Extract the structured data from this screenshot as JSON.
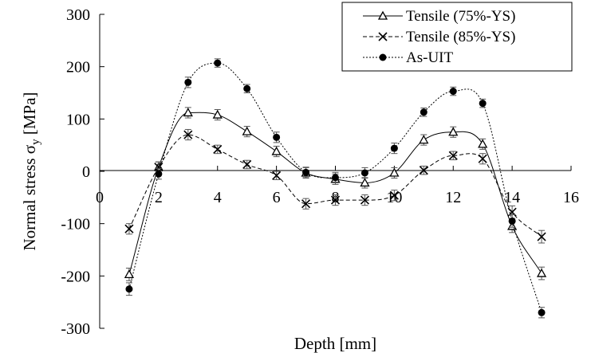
{
  "chart_data": {
    "type": "line",
    "xlabel": "Depth [mm]",
    "ylabel_main": "Normal  stress σ",
    "ylabel_sub": "y",
    "ylabel_unit": " [MPa]",
    "xlim": [
      0,
      16
    ],
    "ylim": [
      -300,
      300
    ],
    "x_ticks": [
      0,
      2,
      4,
      6,
      8,
      10,
      12,
      14,
      16
    ],
    "y_ticks": [
      -300,
      -200,
      -100,
      0,
      100,
      200,
      300
    ],
    "grid": false,
    "legend_position": "top-right",
    "series": [
      {
        "name": "Tensile (75%-YS)",
        "marker": "triangle",
        "line": "solid",
        "points": [
          {
            "x": 1,
            "y": -197,
            "err": 12
          },
          {
            "x": 2,
            "y": 8,
            "err": 10
          },
          {
            "x": 3,
            "y": 112,
            "err": 10
          },
          {
            "x": 4,
            "y": 108,
            "err": 10
          },
          {
            "x": 5,
            "y": 76,
            "err": 10
          },
          {
            "x": 6,
            "y": 38,
            "err": 10
          },
          {
            "x": 7,
            "y": -3,
            "err": 10
          },
          {
            "x": 8,
            "y": -15,
            "err": 10
          },
          {
            "x": 9,
            "y": -22,
            "err": 10
          },
          {
            "x": 10,
            "y": -3,
            "err": 10
          },
          {
            "x": 11,
            "y": 60,
            "err": 10
          },
          {
            "x": 12,
            "y": 75,
            "err": 10
          },
          {
            "x": 13,
            "y": 52,
            "err": 10
          },
          {
            "x": 14,
            "y": -105,
            "err": 12
          },
          {
            "x": 15,
            "y": -195,
            "err": 12
          }
        ]
      },
      {
        "name": "Tensile (85%-YS)",
        "marker": "x",
        "line": "dashed",
        "points": [
          {
            "x": 1,
            "y": -110,
            "err": 10
          },
          {
            "x": 2,
            "y": 8,
            "err": 10
          },
          {
            "x": 3,
            "y": 70,
            "err": 10
          },
          {
            "x": 4,
            "y": 42,
            "err": 8
          },
          {
            "x": 5,
            "y": 13,
            "err": 8
          },
          {
            "x": 6,
            "y": -8,
            "err": 8
          },
          {
            "x": 7,
            "y": -62,
            "err": 10
          },
          {
            "x": 8,
            "y": -55,
            "err": 10
          },
          {
            "x": 9,
            "y": -55,
            "err": 10
          },
          {
            "x": 10,
            "y": -46,
            "err": 10
          },
          {
            "x": 11,
            "y": 2,
            "err": 8
          },
          {
            "x": 12,
            "y": 30,
            "err": 8
          },
          {
            "x": 13,
            "y": 24,
            "err": 10
          },
          {
            "x": 14,
            "y": -78,
            "err": 12
          },
          {
            "x": 15,
            "y": -125,
            "err": 12
          }
        ]
      },
      {
        "name": "As-UIT",
        "marker": "dot",
        "line": "dotted",
        "points": [
          {
            "x": 1,
            "y": -225,
            "err": 12
          },
          {
            "x": 2,
            "y": -5,
            "err": 10
          },
          {
            "x": 3,
            "y": 170,
            "err": 10
          },
          {
            "x": 4,
            "y": 207,
            "err": 8
          },
          {
            "x": 5,
            "y": 158,
            "err": 8
          },
          {
            "x": 6,
            "y": 65,
            "err": 10
          },
          {
            "x": 7,
            "y": -2,
            "err": 10
          },
          {
            "x": 8,
            "y": -12,
            "err": 10
          },
          {
            "x": 9,
            "y": -3,
            "err": 10
          },
          {
            "x": 10,
            "y": 44,
            "err": 10
          },
          {
            "x": 11,
            "y": 113,
            "err": 8
          },
          {
            "x": 12,
            "y": 153,
            "err": 8
          },
          {
            "x": 13,
            "y": 130,
            "err": 8
          },
          {
            "x": 14,
            "y": -95,
            "err": 12
          },
          {
            "x": 15,
            "y": -270,
            "err": 10
          }
        ]
      }
    ]
  }
}
